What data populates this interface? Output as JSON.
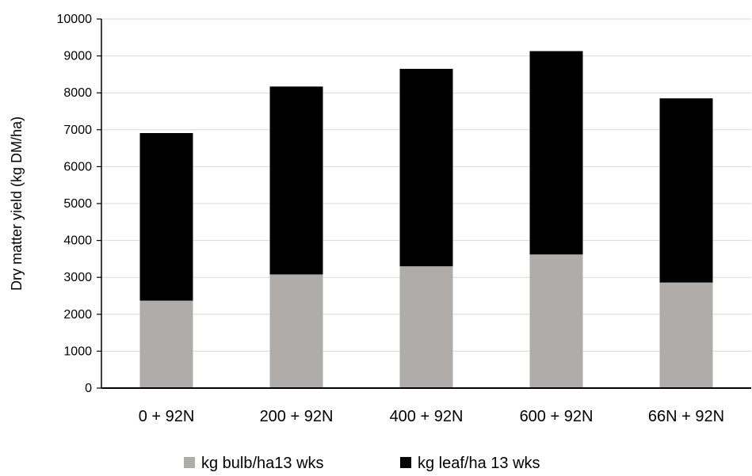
{
  "chart_data": {
    "type": "bar",
    "stacked": true,
    "title": "",
    "xlabel": "",
    "ylabel": "Dry matter yield (kg DM/ha)",
    "ylim": [
      0,
      10000
    ],
    "yticks": [
      0,
      1000,
      2000,
      3000,
      4000,
      5000,
      6000,
      7000,
      8000,
      9000,
      10000
    ],
    "grid": true,
    "legend": "bottom",
    "categories": [
      "0 + 92N",
      "200 + 92N",
      "400 + 92N",
      "600 + 92N",
      "66N + 92N"
    ],
    "series": [
      {
        "name": "kg bulb/ha13 wks",
        "color": "#b0acaa",
        "values": [
          2370,
          3080,
          3300,
          3620,
          2860
        ]
      },
      {
        "name": "kg leaf/ha 13 wks",
        "color": "#000000",
        "values": [
          4540,
          5090,
          5350,
          5510,
          4990
        ]
      }
    ]
  }
}
